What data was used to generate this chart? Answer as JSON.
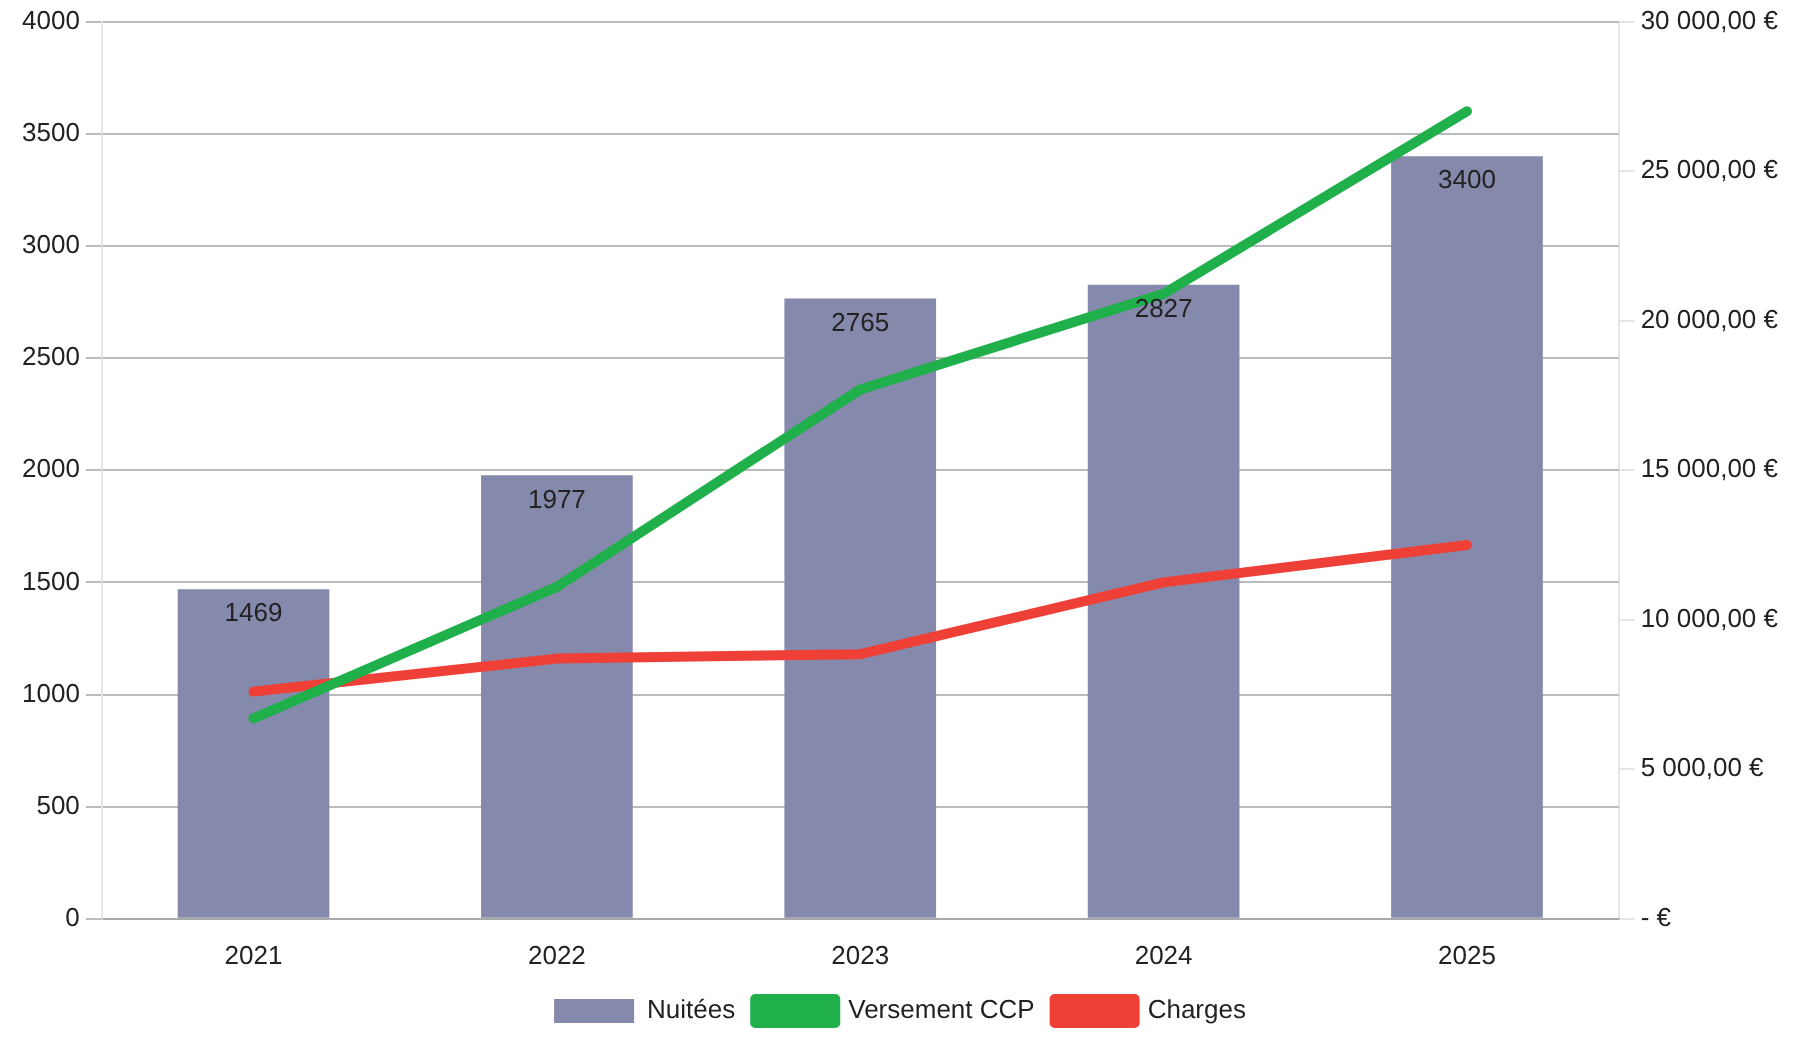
{
  "chart_data": {
    "type": "bar",
    "categories": [
      "2021",
      "2022",
      "2023",
      "2024",
      "2025"
    ],
    "series": [
      {
        "name": "Nuitées",
        "color": "#8589ab",
        "values": [
          1469,
          1977,
          2765,
          2827,
          3400
        ],
        "value_labels": [
          "1469",
          "1977",
          "2765",
          "2827",
          "3400"
        ]
      },
      {
        "name": "Versement CCP",
        "type": "line",
        "axis": "y2",
        "color": "#1faf4b",
        "values": [
          6700,
          11100,
          17700,
          20900,
          27000
        ]
      },
      {
        "name": "Charges",
        "type": "line",
        "axis": "y2",
        "color": "#ee4036",
        "values": [
          7600,
          8700,
          8850,
          11250,
          12500
        ]
      }
    ],
    "ylim": [
      0,
      4000
    ],
    "yticks": [
      0,
      500,
      1000,
      1500,
      2000,
      2500,
      3000,
      3500,
      4000
    ],
    "y2lim": [
      0,
      30000
    ],
    "y2ticks": [
      {
        "value": 0,
        "label": "- €"
      },
      {
        "value": 5000,
        "label": "5 000,00 €"
      },
      {
        "value": 10000,
        "label": "10 000,00 €"
      },
      {
        "value": 15000,
        "label": "15 000,00 €"
      },
      {
        "value": 20000,
        "label": "20 000,00 €"
      },
      {
        "value": 25000,
        "label": "25 000,00 €"
      },
      {
        "value": 30000,
        "label": "30 000,00 €"
      }
    ],
    "grid": "y",
    "legend": "bottom",
    "marker": "none",
    "line_style": "solid"
  }
}
